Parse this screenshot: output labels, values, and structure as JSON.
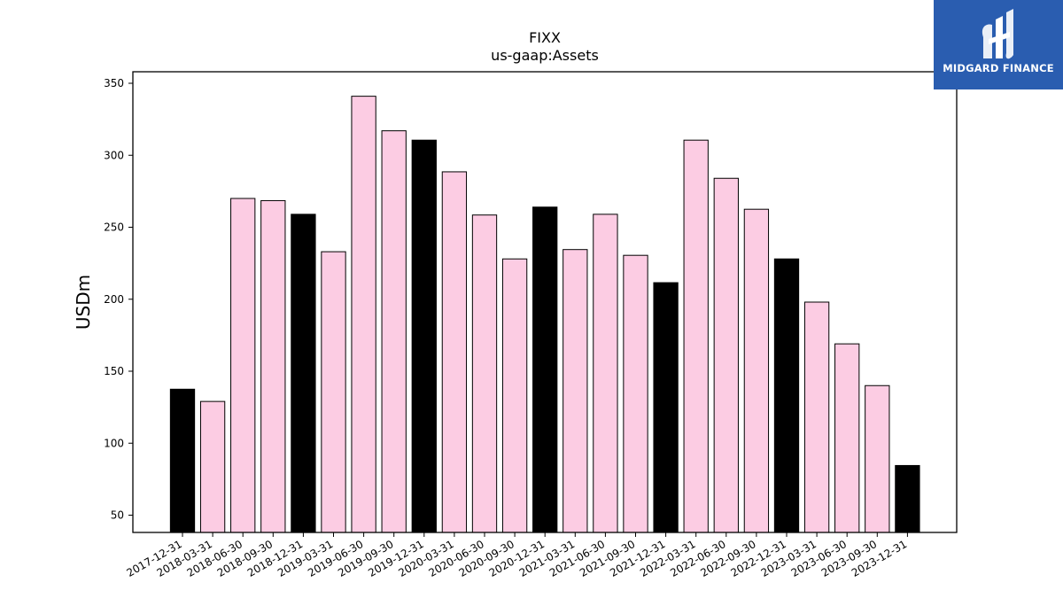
{
  "chart_data": {
    "type": "bar",
    "title": "FIXX",
    "subtitle": "us-gaap:Assets",
    "xlabel": "",
    "ylabel": "USDm",
    "ylim": [
      38,
      358
    ],
    "yticks": [
      50,
      100,
      150,
      200,
      250,
      300,
      350
    ],
    "grid": false,
    "categories": [
      "2017-12-31",
      "2018-03-31",
      "2018-06-30",
      "2018-09-30",
      "2018-12-31",
      "2019-03-31",
      "2019-06-30",
      "2019-09-30",
      "2019-12-31",
      "2020-03-31",
      "2020-06-30",
      "2020-09-30",
      "2020-12-31",
      "2021-03-31",
      "2021-06-30",
      "2021-09-30",
      "2021-12-31",
      "2022-03-31",
      "2022-06-30",
      "2022-09-30",
      "2022-12-31",
      "2023-03-31",
      "2023-06-30",
      "2023-09-30",
      "2023-12-31"
    ],
    "values": [
      137.5,
      129,
      270,
      268.5,
      259,
      233,
      341,
      317,
      310.5,
      288.5,
      258.5,
      228,
      264,
      234.5,
      259,
      230.5,
      211.5,
      310.5,
      284,
      262.5,
      228,
      198,
      169,
      140,
      84.5
    ],
    "fiscal_year_end": [
      true,
      false,
      false,
      false,
      true,
      false,
      false,
      false,
      true,
      false,
      false,
      false,
      true,
      false,
      false,
      false,
      true,
      false,
      false,
      false,
      true,
      false,
      false,
      false,
      true
    ],
    "colors": {
      "year_end": "#000000",
      "quarter": "#fccce3",
      "edge": "#000000"
    }
  },
  "logo": {
    "text": "MIDGARD FINANCE",
    "bg": "#2a5db0"
  }
}
